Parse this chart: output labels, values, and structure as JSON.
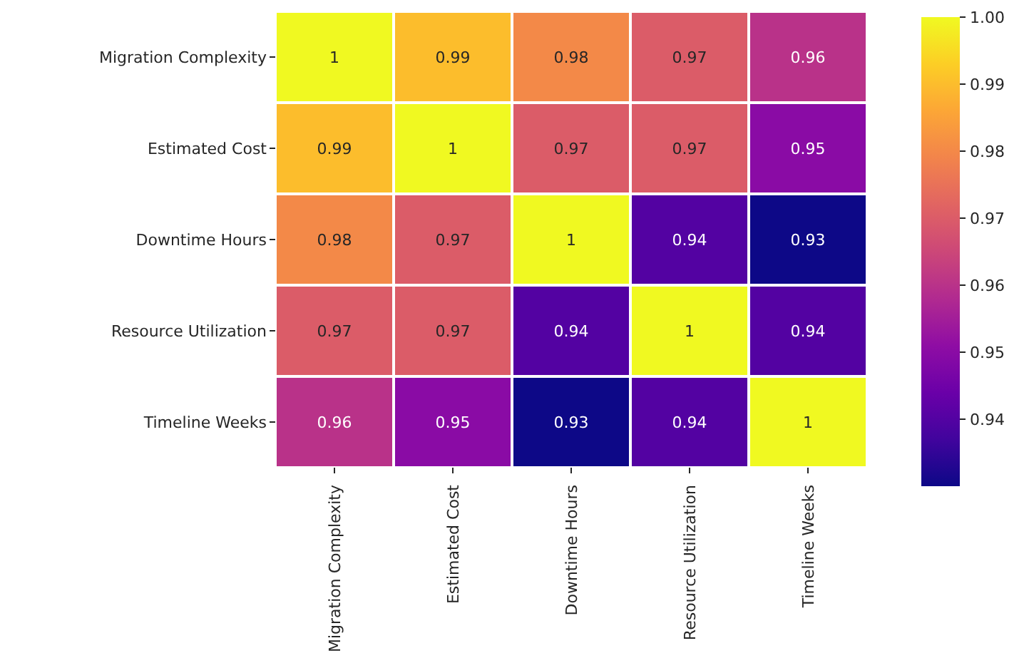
{
  "chart_data": {
    "type": "heatmap",
    "categories": [
      "Migration Complexity",
      "Estimated Cost",
      "Downtime Hours",
      "Resource Utilization",
      "Timeline Weeks"
    ],
    "y_categories": [
      "Migration Complexity",
      "Estimated Cost",
      "Downtime Hours",
      "Resource Utilization",
      "Timeline Weeks"
    ],
    "cells": [
      [
        1,
        0.99,
        0.98,
        0.97,
        0.96
      ],
      [
        0.99,
        1,
        0.97,
        0.97,
        0.95
      ],
      [
        0.98,
        0.97,
        1,
        0.94,
        0.93
      ],
      [
        0.97,
        0.97,
        0.94,
        1,
        0.94
      ],
      [
        0.96,
        0.95,
        0.93,
        0.94,
        1
      ]
    ],
    "clim": [
      0.93,
      1.0
    ],
    "cticks": [
      0.94,
      0.95,
      0.96,
      0.97,
      0.98,
      0.99,
      {
        "value": 1.0,
        "label": "1.00"
      }
    ],
    "data_labels": true
  }
}
